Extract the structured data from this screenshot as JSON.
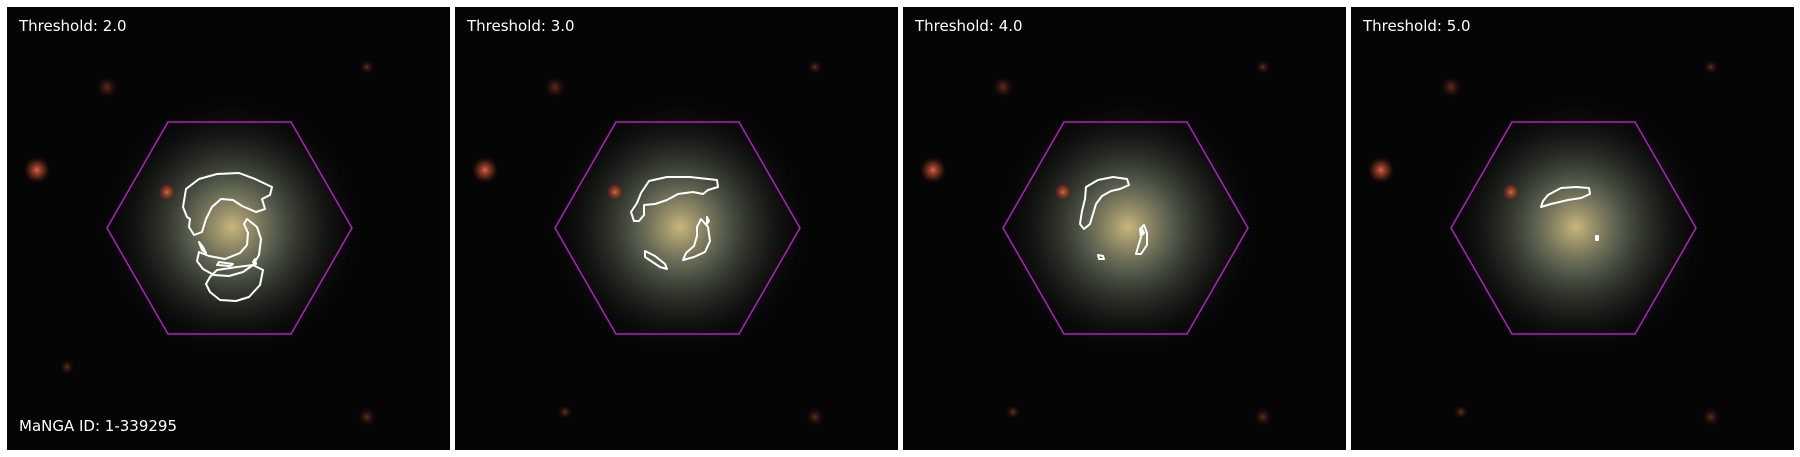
{
  "panels": [
    {
      "label": "Threshold: 2.0",
      "id_label": "MaNGA ID: 1-339295"
    },
    {
      "label": "Threshold: 3.0"
    },
    {
      "label": "Threshold: 4.0"
    },
    {
      "label": "Threshold: 5.0"
    }
  ],
  "colors": {
    "background": "#050505",
    "galaxy_core": "#b8a770",
    "galaxy_disk": "#6b7564",
    "ifu_hexagon": "#b01fc0",
    "contour": "#ffffff",
    "star_red": "#d0553a"
  }
}
